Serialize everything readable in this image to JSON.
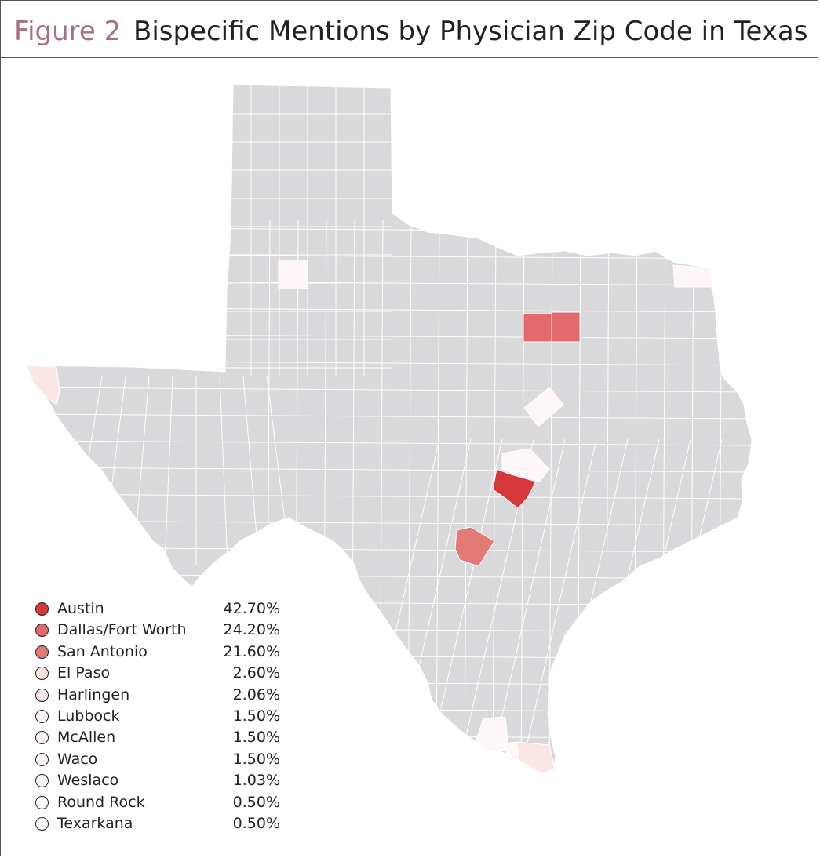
{
  "figure": {
    "label": "Figure 2",
    "title": "Bispecific Mentions by Physician Zip Code in Texas"
  },
  "colors": {
    "base_county": "#d9d9db",
    "county_border": "#ffffff",
    "label_color": "#a8707a",
    "austin": "#d6373a",
    "dallas_fort_worth": "#e26a6c",
    "san_antonio": "#e27a76",
    "low_share": "#fbe6e6",
    "lowest_share": "#fdf6f6"
  },
  "legend": [
    {
      "name": "Austin",
      "pct": "42.70%",
      "color": "#d6373a"
    },
    {
      "name": "Dallas/Fort Worth",
      "pct": "24.20%",
      "color": "#e26a6c"
    },
    {
      "name": "San Antonio",
      "pct": "21.60%",
      "color": "#e27a76"
    },
    {
      "name": "El Paso",
      "pct": "2.60%",
      "color": "#fbe3e3"
    },
    {
      "name": "Harlingen",
      "pct": "2.06%",
      "color": "#fbe6e6"
    },
    {
      "name": "Lubbock",
      "pct": "1.50%",
      "color": "#fdf3f3"
    },
    {
      "name": "McAllen",
      "pct": "1.50%",
      "color": "#fdf3f3"
    },
    {
      "name": "Waco",
      "pct": "1.50%",
      "color": "#fdf3f3"
    },
    {
      "name": "Weslaco",
      "pct": "1.03%",
      "color": "#fdf6f6"
    },
    {
      "name": "Round Rock",
      "pct": "0.50%",
      "color": "#ffffff"
    },
    {
      "name": "Texarkana",
      "pct": "0.50%",
      "color": "#ffffff"
    }
  ]
}
